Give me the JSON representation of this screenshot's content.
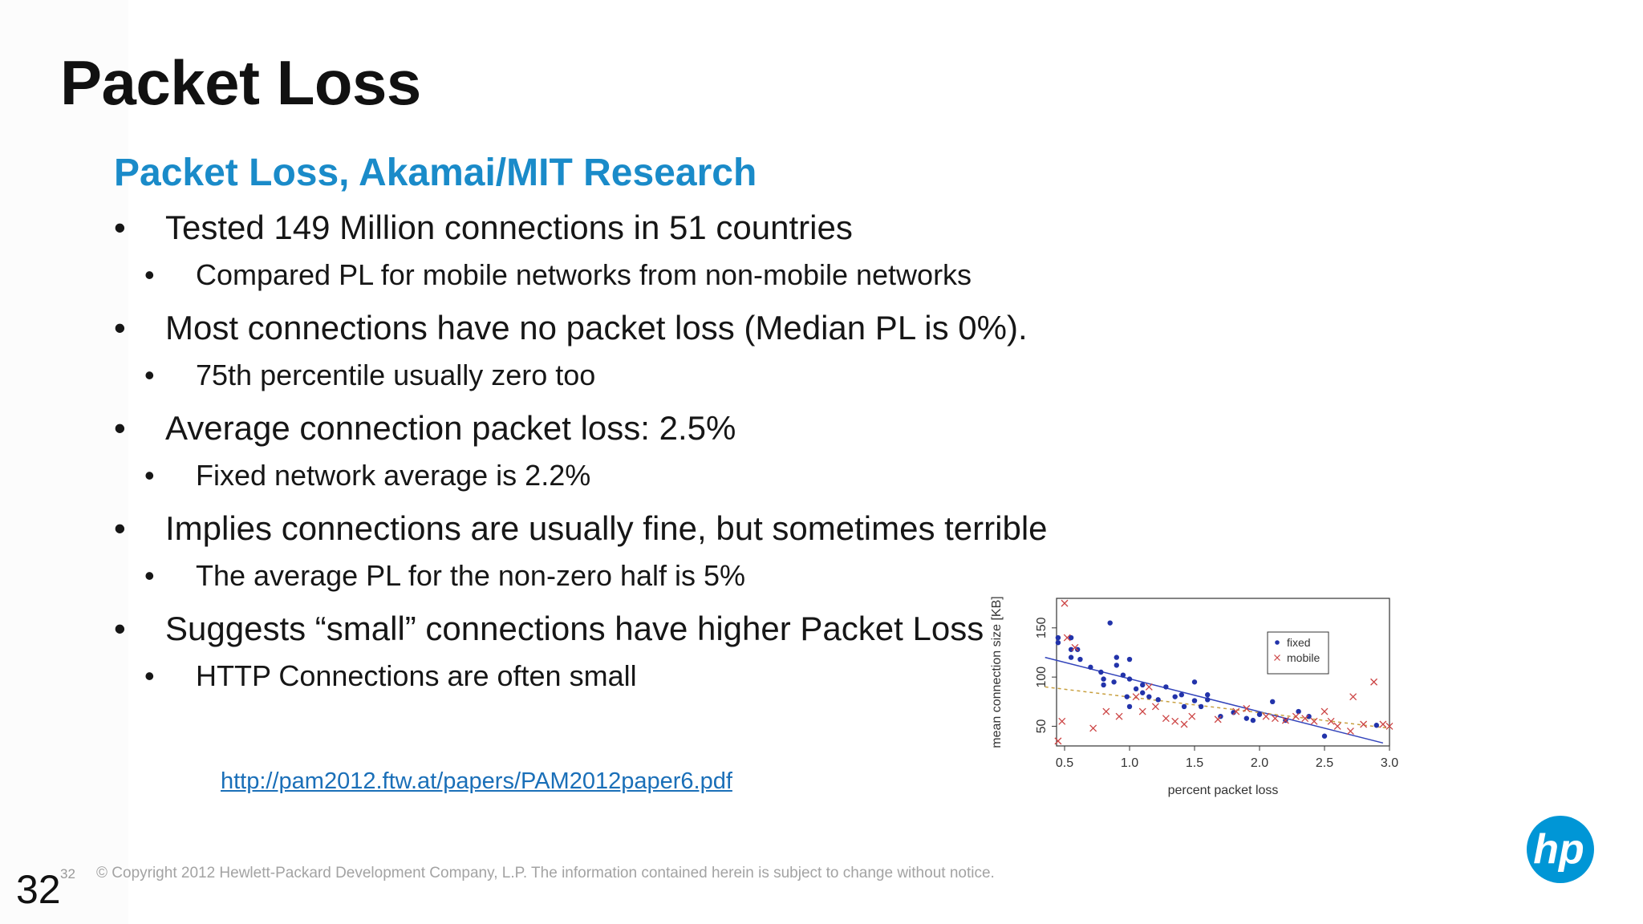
{
  "slide": {
    "title": "Packet Loss",
    "subtitle": "Packet Loss, Akamai/MIT Research",
    "bullets": [
      {
        "level": 1,
        "text": "Tested 149 Million connections in 51 countries"
      },
      {
        "level": 2,
        "text": "Compared PL for mobile networks from non-mobile networks"
      },
      {
        "level": 1,
        "text": "Most connections have no packet loss (Median PL is 0%)."
      },
      {
        "level": 2,
        "text": "75th percentile usually zero too"
      },
      {
        "level": 1,
        "text": "Average connection packet loss: 2.5%"
      },
      {
        "level": 2,
        "text": "Fixed network average is 2.2%"
      },
      {
        "level": 1,
        "text": "Implies connections are usually fine, but sometimes terrible"
      },
      {
        "level": 2,
        "text": "The average PL for the non-zero half is 5%"
      },
      {
        "level": 1,
        "text": "Suggests “small” connections have higher Packet Loss"
      },
      {
        "level": 2,
        "text": "HTTP Connections are often small"
      }
    ],
    "bullet_glyph": "•",
    "link": "http://pam2012.ftw.at/papers/PAM2012paper6.pdf",
    "footer": {
      "page_number_small": "32",
      "copyright": "© Copyright 2012 Hewlett-Packard Development Company, L.P.  The information contained herein is subject to change without notice.",
      "page_number": "32"
    },
    "logo": {
      "text": "hp",
      "color": "#0096d6"
    },
    "colors": {
      "subtitle": "#1a8bc9",
      "link": "#1a6fb8"
    }
  },
  "chart_data": {
    "type": "scatter",
    "xlabel": "percent packet loss",
    "ylabel": "mean connection size [KB]",
    "xlim": [
      0.3,
      3.0
    ],
    "ylim": [
      30,
      180
    ],
    "xticks": [
      "0.5",
      "1.0",
      "1.5",
      "2.0",
      "2.5",
      "3.0"
    ],
    "yticks": [
      "50",
      "100",
      "150"
    ],
    "legend_position": "top-right",
    "series": [
      {
        "name": "fixed",
        "marker": "dot",
        "color": "#2233aa",
        "points": [
          [
            0.45,
            140
          ],
          [
            0.45,
            135
          ],
          [
            0.55,
            140
          ],
          [
            0.55,
            128
          ],
          [
            0.55,
            120
          ],
          [
            0.6,
            128
          ],
          [
            0.62,
            118
          ],
          [
            0.7,
            110
          ],
          [
            0.78,
            105
          ],
          [
            0.8,
            98
          ],
          [
            0.8,
            92
          ],
          [
            0.85,
            155
          ],
          [
            0.88,
            95
          ],
          [
            0.9,
            120
          ],
          [
            0.9,
            112
          ],
          [
            0.95,
            102
          ],
          [
            0.98,
            80
          ],
          [
            1.0,
            118
          ],
          [
            1.0,
            98
          ],
          [
            1.0,
            70
          ],
          [
            1.05,
            88
          ],
          [
            1.1,
            92
          ],
          [
            1.1,
            84
          ],
          [
            1.15,
            80
          ],
          [
            1.22,
            77
          ],
          [
            1.28,
            90
          ],
          [
            1.35,
            80
          ],
          [
            1.4,
            82
          ],
          [
            1.42,
            70
          ],
          [
            1.5,
            95
          ],
          [
            1.5,
            76
          ],
          [
            1.55,
            70
          ],
          [
            1.6,
            82
          ],
          [
            1.6,
            77
          ],
          [
            1.7,
            60
          ],
          [
            1.8,
            64
          ],
          [
            1.9,
            58
          ],
          [
            1.95,
            56
          ],
          [
            2.0,
            62
          ],
          [
            2.1,
            75
          ],
          [
            2.2,
            56
          ],
          [
            2.3,
            65
          ],
          [
            2.38,
            60
          ],
          [
            2.5,
            40
          ],
          [
            2.9,
            51
          ]
        ]
      },
      {
        "name": "mobile",
        "marker": "cross",
        "color": "#cc4444",
        "points": [
          [
            0.5,
            175
          ],
          [
            0.52,
            140
          ],
          [
            0.58,
            130
          ],
          [
            0.48,
            55
          ],
          [
            0.45,
            35
          ],
          [
            0.72,
            48
          ],
          [
            0.82,
            65
          ],
          [
            0.92,
            60
          ],
          [
            1.05,
            80
          ],
          [
            1.1,
            65
          ],
          [
            1.15,
            90
          ],
          [
            1.2,
            70
          ],
          [
            1.28,
            58
          ],
          [
            1.35,
            55
          ],
          [
            1.42,
            52
          ],
          [
            1.48,
            60
          ],
          [
            1.68,
            57
          ],
          [
            1.82,
            65
          ],
          [
            1.9,
            68
          ],
          [
            2.05,
            60
          ],
          [
            2.12,
            58
          ],
          [
            2.2,
            56
          ],
          [
            2.28,
            60
          ],
          [
            2.35,
            58
          ],
          [
            2.42,
            55
          ],
          [
            2.5,
            65
          ],
          [
            2.55,
            55
          ],
          [
            2.6,
            50
          ],
          [
            2.7,
            45
          ],
          [
            2.72,
            80
          ],
          [
            2.8,
            52
          ],
          [
            2.88,
            95
          ],
          [
            2.95,
            52
          ],
          [
            3.0,
            50
          ]
        ]
      }
    ],
    "fit_lines": [
      {
        "series": "fixed",
        "style": "solid",
        "color": "#3344bb",
        "from": [
          0.35,
          120
        ],
        "to": [
          2.95,
          33
        ]
      },
      {
        "series": "mobile",
        "style": "dashed",
        "color": "#c8a040",
        "from": [
          0.35,
          90
        ],
        "to": [
          3.0,
          48
        ]
      }
    ]
  }
}
